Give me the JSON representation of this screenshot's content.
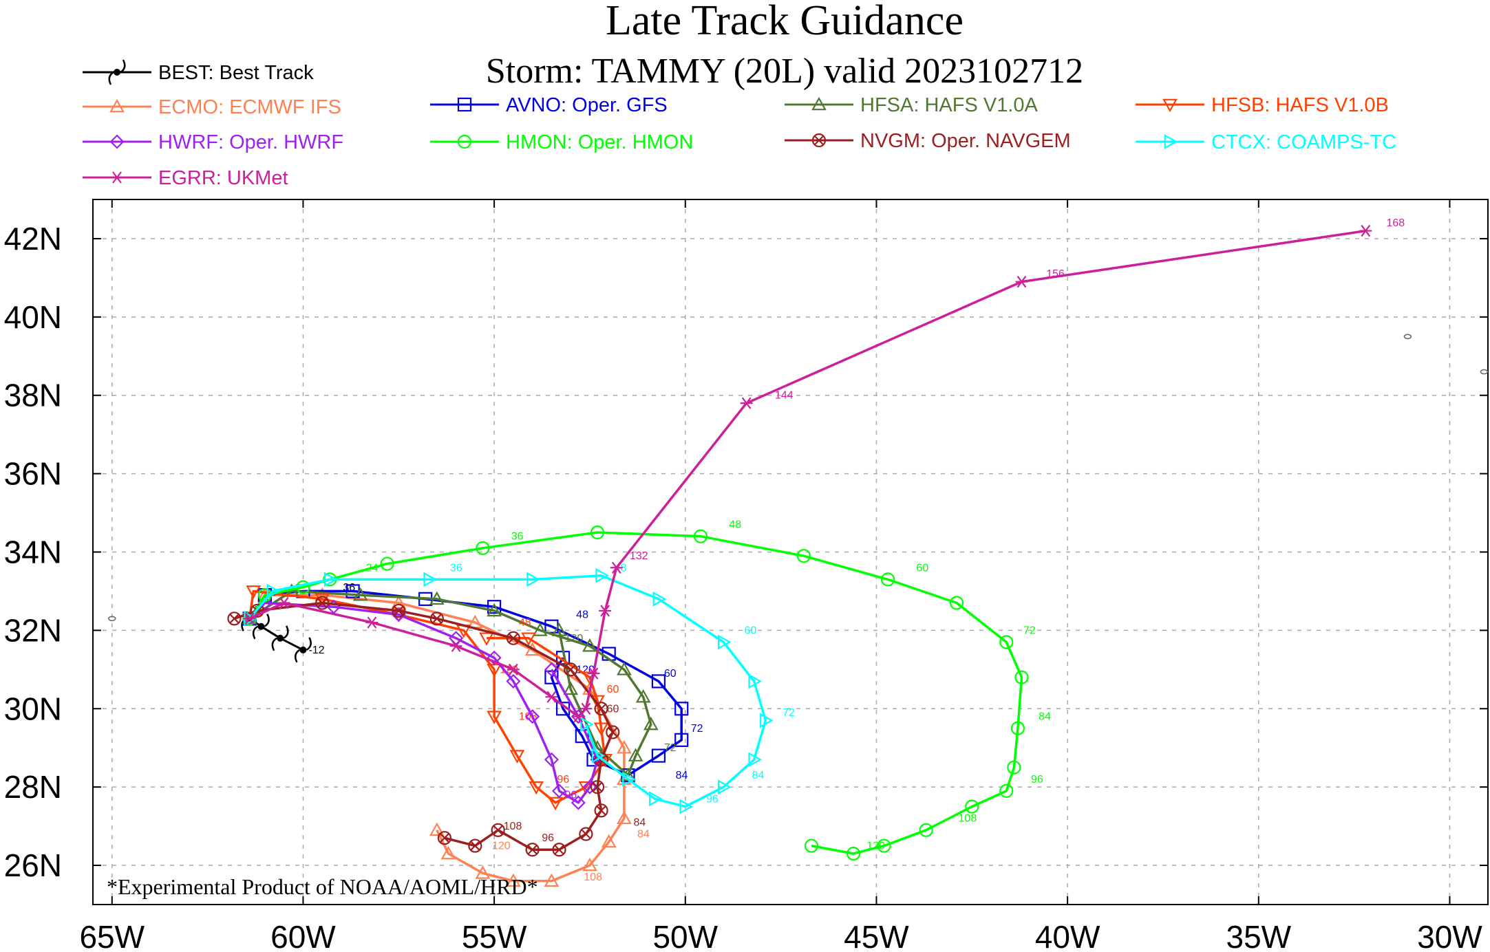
{
  "chart_data": {
    "type": "line",
    "title": "Late Track Guidance",
    "subtitle": "Storm: TAMMY (20L) valid 2023102712",
    "footnote": "*Experimental Product of NOAA/AOML/HRD*",
    "xlim": [
      -65.5,
      -29.0
    ],
    "ylim": [
      25.0,
      43.0
    ],
    "x_ticks": [
      {
        "v": -65,
        "label": "65W"
      },
      {
        "v": -60,
        "label": "60W"
      },
      {
        "v": -55,
        "label": "55W"
      },
      {
        "v": -50,
        "label": "50W"
      },
      {
        "v": -45,
        "label": "45W"
      },
      {
        "v": -40,
        "label": "40W"
      },
      {
        "v": -35,
        "label": "35W"
      },
      {
        "v": -30,
        "label": "30W"
      }
    ],
    "y_ticks": [
      {
        "v": 26,
        "label": "26N"
      },
      {
        "v": 28,
        "label": "28N"
      },
      {
        "v": 30,
        "label": "30N"
      },
      {
        "v": 32,
        "label": "32N"
      },
      {
        "v": 34,
        "label": "34N"
      },
      {
        "v": 36,
        "label": "36N"
      },
      {
        "v": 38,
        "label": "38N"
      },
      {
        "v": 40,
        "label": "40N"
      },
      {
        "v": 42,
        "label": "42N"
      }
    ],
    "legend": [
      {
        "id": "BEST",
        "label": "BEST: Best Track"
      },
      {
        "id": "ECMO",
        "label": "ECMO: ECMWF IFS"
      },
      {
        "id": "AVNO",
        "label": "AVNO: Oper. GFS"
      },
      {
        "id": "HFSA",
        "label": "HFSA: HAFS V1.0A"
      },
      {
        "id": "HFSB",
        "label": "HFSB: HAFS V1.0B"
      },
      {
        "id": "HWRF",
        "label": "HWRF: Oper. HWRF"
      },
      {
        "id": "HMON",
        "label": "HMON: Oper. HMON"
      },
      {
        "id": "NVGM",
        "label": "NVGM: Oper. NAVGEM"
      },
      {
        "id": "CTCX",
        "label": "CTCX: COAMPS-TC"
      },
      {
        "id": "EGRR",
        "label": "EGRR: UKMet"
      }
    ],
    "series": [
      {
        "id": "BEST",
        "color": "#000000",
        "marker": "hurricane",
        "points": [
          [
            -60.0,
            31.5
          ],
          [
            -60.6,
            31.8
          ],
          [
            -61.1,
            32.1
          ],
          [
            -61.4,
            32.3
          ]
        ],
        "labels": [
          {
            "x": -60.0,
            "y": 31.5,
            "t": "-12"
          },
          {
            "x": -59.1,
            "y": 33.1,
            "t": "36"
          }
        ]
      },
      {
        "id": "ECMO",
        "color": "#ff8050",
        "marker": "triangle",
        "points": [
          [
            -61.4,
            32.3
          ],
          [
            -61.0,
            32.9
          ],
          [
            -59.5,
            32.9
          ],
          [
            -57.5,
            32.7
          ],
          [
            -55.5,
            32.2
          ],
          [
            -54.0,
            31.5
          ],
          [
            -52.5,
            30.5
          ],
          [
            -51.6,
            29.0
          ],
          [
            -51.6,
            28.2
          ],
          [
            -51.6,
            27.2
          ],
          [
            -52.0,
            26.6
          ],
          [
            -52.5,
            26.0
          ],
          [
            -53.5,
            25.6
          ],
          [
            -54.5,
            25.6
          ],
          [
            -55.3,
            25.8
          ],
          [
            -56.2,
            26.3
          ],
          [
            -56.5,
            26.9
          ]
        ],
        "labels": [
          {
            "x": -51.4,
            "y": 26.8,
            "t": "84"
          },
          {
            "x": -52.8,
            "y": 25.7,
            "t": "108"
          },
          {
            "x": -55.2,
            "y": 26.5,
            "t": "120"
          }
        ]
      },
      {
        "id": "AVNO",
        "color": "#0000e0",
        "marker": "square",
        "points": [
          [
            -61.4,
            32.3
          ],
          [
            -61.0,
            32.9
          ],
          [
            -60.0,
            33.0
          ],
          [
            -58.7,
            33.0
          ],
          [
            -56.8,
            32.8
          ],
          [
            -55.0,
            32.6
          ],
          [
            -53.5,
            32.1
          ],
          [
            -52.0,
            31.4
          ],
          [
            -50.7,
            30.7
          ],
          [
            -50.1,
            30.0
          ],
          [
            -50.1,
            29.2
          ],
          [
            -50.7,
            28.8
          ],
          [
            -51.5,
            28.3
          ],
          [
            -52.4,
            28.7
          ],
          [
            -52.7,
            29.3
          ],
          [
            -53.2,
            30.0
          ],
          [
            -53.5,
            30.8
          ],
          [
            -53.2,
            31.3
          ]
        ],
        "labels": [
          {
            "x": -50.7,
            "y": 30.9,
            "t": "60"
          },
          {
            "x": -50.0,
            "y": 29.5,
            "t": "72"
          },
          {
            "x": -50.4,
            "y": 28.3,
            "t": "84"
          },
          {
            "x": -53.0,
            "y": 32.4,
            "t": "48"
          },
          {
            "x": -53.0,
            "y": 31.0,
            "t": "120"
          }
        ]
      },
      {
        "id": "HFSA",
        "color": "#507830",
        "marker": "triangle",
        "points": [
          [
            -61.4,
            32.3
          ],
          [
            -60.3,
            33.0
          ],
          [
            -58.5,
            32.9
          ],
          [
            -56.5,
            32.8
          ],
          [
            -55.0,
            32.5
          ],
          [
            -53.8,
            32.0
          ],
          [
            -52.5,
            31.6
          ],
          [
            -51.6,
            31.0
          ],
          [
            -51.1,
            30.3
          ],
          [
            -50.9,
            29.6
          ],
          [
            -51.3,
            28.8
          ],
          [
            -51.5,
            28.3
          ],
          [
            -52.3,
            29.0
          ],
          [
            -53.0,
            30.5
          ],
          [
            -53.3,
            32.0
          ]
        ],
        "labels": [
          {
            "x": -53.3,
            "y": 31.8,
            "t": "120"
          },
          {
            "x": -50.7,
            "y": 29.0,
            "t": "72"
          }
        ]
      },
      {
        "id": "HFSB",
        "color": "#ff4000",
        "marker": "triangle-down",
        "points": [
          [
            -61.4,
            32.3
          ],
          [
            -61.3,
            33.0
          ],
          [
            -59.5,
            32.8
          ],
          [
            -57.5,
            32.4
          ],
          [
            -55.8,
            32.0
          ],
          [
            -55.0,
            31.0
          ],
          [
            -55.0,
            29.8
          ],
          [
            -54.4,
            28.8
          ],
          [
            -53.9,
            28.0
          ],
          [
            -53.4,
            27.6
          ],
          [
            -52.6,
            28.0
          ],
          [
            -52.1,
            28.7
          ],
          [
            -52.2,
            29.5
          ],
          [
            -52.3,
            30.2
          ],
          [
            -52.5,
            30.8
          ],
          [
            -54.1,
            31.8
          ],
          [
            -55.2,
            31.8
          ]
        ],
        "labels": [
          {
            "x": -52.2,
            "y": 30.5,
            "t": "60"
          },
          {
            "x": -53.5,
            "y": 28.2,
            "t": "96"
          },
          {
            "x": -54.5,
            "y": 29.8,
            "t": "108"
          },
          {
            "x": -55.0,
            "y": 31.0,
            "t": "120"
          },
          {
            "x": -54.5,
            "y": 32.2,
            "t": "48"
          }
        ]
      },
      {
        "id": "HWRF",
        "color": "#a020f0",
        "marker": "diamond",
        "points": [
          [
            -61.4,
            32.3
          ],
          [
            -61.0,
            32.7
          ],
          [
            -59.2,
            32.6
          ],
          [
            -57.5,
            32.4
          ],
          [
            -56.0,
            31.8
          ],
          [
            -55.0,
            31.3
          ],
          [
            -54.5,
            30.7
          ],
          [
            -54.0,
            29.8
          ],
          [
            -53.5,
            28.7
          ],
          [
            -53.3,
            27.9
          ],
          [
            -52.8,
            27.6
          ],
          [
            -52.5,
            28.0
          ],
          [
            -52.3,
            28.7
          ],
          [
            -52.8,
            29.8
          ],
          [
            -53.5,
            31.0
          ]
        ],
        "labels": [
          {
            "x": -53.3,
            "y": 27.8,
            "t": "96"
          }
        ]
      },
      {
        "id": "HMON",
        "color": "#00ff00",
        "marker": "circle",
        "points": [
          [
            -61.4,
            32.3
          ],
          [
            -61.0,
            32.9
          ],
          [
            -60.0,
            33.1
          ],
          [
            -59.3,
            33.3
          ],
          [
            -57.8,
            33.7
          ],
          [
            -55.3,
            34.1
          ],
          [
            -52.3,
            34.5
          ],
          [
            -49.6,
            34.4
          ],
          [
            -46.9,
            33.9
          ],
          [
            -44.7,
            33.3
          ],
          [
            -42.9,
            32.7
          ],
          [
            -41.6,
            31.7
          ],
          [
            -41.2,
            30.8
          ],
          [
            -41.3,
            29.5
          ],
          [
            -41.4,
            28.5
          ],
          [
            -41.6,
            27.9
          ],
          [
            -42.5,
            27.5
          ],
          [
            -43.7,
            26.9
          ],
          [
            -44.8,
            26.5
          ],
          [
            -45.6,
            26.3
          ],
          [
            -46.7,
            26.5
          ]
        ],
        "labels": [
          {
            "x": -58.5,
            "y": 33.6,
            "t": "24"
          },
          {
            "x": -54.7,
            "y": 34.4,
            "t": "36"
          },
          {
            "x": -49.0,
            "y": 34.7,
            "t": "48"
          },
          {
            "x": -44.1,
            "y": 33.6,
            "t": "60"
          },
          {
            "x": -41.3,
            "y": 32.0,
            "t": "72"
          },
          {
            "x": -40.9,
            "y": 29.8,
            "t": "84"
          },
          {
            "x": -41.1,
            "y": 28.2,
            "t": "96"
          },
          {
            "x": -43.0,
            "y": 27.2,
            "t": "108"
          },
          {
            "x": -45.4,
            "y": 26.5,
            "t": "120"
          }
        ]
      },
      {
        "id": "NVGM",
        "color": "#9b1f1f",
        "marker": "circle-x",
        "points": [
          [
            -61.8,
            32.3
          ],
          [
            -61.2,
            32.5
          ],
          [
            -59.5,
            32.7
          ],
          [
            -57.5,
            32.5
          ],
          [
            -56.5,
            32.3
          ],
          [
            -54.5,
            31.8
          ],
          [
            -53.0,
            31.0
          ],
          [
            -52.2,
            30.0
          ],
          [
            -51.9,
            29.4
          ],
          [
            -52.2,
            28.7
          ],
          [
            -52.3,
            28.0
          ],
          [
            -52.2,
            27.4
          ],
          [
            -52.6,
            26.8
          ],
          [
            -53.3,
            26.4
          ],
          [
            -54.0,
            26.4
          ],
          [
            -54.9,
            26.9
          ],
          [
            -55.5,
            26.5
          ],
          [
            -56.3,
            26.7
          ]
        ],
        "labels": [
          {
            "x": -52.2,
            "y": 30.0,
            "t": "60"
          },
          {
            "x": -51.5,
            "y": 27.1,
            "t": "84"
          },
          {
            "x": -53.9,
            "y": 26.7,
            "t": "96"
          },
          {
            "x": -54.9,
            "y": 27.0,
            "t": "108"
          }
        ]
      },
      {
        "id": "CTCX",
        "color": "#00ffff",
        "marker": "triangle-right",
        "points": [
          [
            -61.4,
            32.3
          ],
          [
            -60.8,
            33.0
          ],
          [
            -59.3,
            33.3
          ],
          [
            -56.7,
            33.3
          ],
          [
            -54.0,
            33.3
          ],
          [
            -52.2,
            33.4
          ],
          [
            -50.7,
            32.8
          ],
          [
            -49.0,
            31.7
          ],
          [
            -48.2,
            30.7
          ],
          [
            -47.9,
            29.7
          ],
          [
            -48.2,
            28.7
          ],
          [
            -49.0,
            28.0
          ],
          [
            -50.0,
            27.5
          ],
          [
            -50.8,
            27.7
          ],
          [
            -51.5,
            28.2
          ],
          [
            -52.3,
            28.8
          ],
          [
            -52.6,
            29.6
          ]
        ],
        "labels": [
          {
            "x": -56.3,
            "y": 33.6,
            "t": "36"
          },
          {
            "x": -52.0,
            "y": 33.6,
            "t": "48"
          },
          {
            "x": -48.6,
            "y": 32.0,
            "t": "60"
          },
          {
            "x": -47.6,
            "y": 29.9,
            "t": "72"
          },
          {
            "x": -48.4,
            "y": 28.3,
            "t": "84"
          },
          {
            "x": -49.6,
            "y": 27.7,
            "t": "96"
          }
        ]
      },
      {
        "id": "EGRR",
        "color": "#cc1f99",
        "marker": "asterisk",
        "points": [
          [
            -61.4,
            32.3
          ],
          [
            -60.5,
            32.7
          ],
          [
            -58.2,
            32.2
          ],
          [
            -56.0,
            31.6
          ],
          [
            -54.5,
            31.0
          ],
          [
            -53.5,
            30.3
          ],
          [
            -52.8,
            29.8
          ],
          [
            -52.6,
            30.0
          ],
          [
            -52.4,
            30.9
          ],
          [
            -52.1,
            32.5
          ],
          [
            -51.8,
            33.6
          ],
          [
            -48.4,
            37.8
          ],
          [
            -41.2,
            40.9
          ],
          [
            -32.2,
            42.2
          ]
        ],
        "labels": [
          {
            "x": -51.6,
            "y": 33.9,
            "t": "132"
          },
          {
            "x": -47.8,
            "y": 38.0,
            "t": "144"
          },
          {
            "x": -40.7,
            "y": 41.1,
            "t": "156"
          },
          {
            "x": -31.8,
            "y": 42.4,
            "t": "168"
          }
        ]
      }
    ],
    "land_fragments": [
      {
        "x": -65.0,
        "y": 32.3
      },
      {
        "x": -31.1,
        "y": 39.5
      },
      {
        "x": -29.1,
        "y": 38.6
      }
    ],
    "grid": true,
    "legend_position": "top"
  }
}
